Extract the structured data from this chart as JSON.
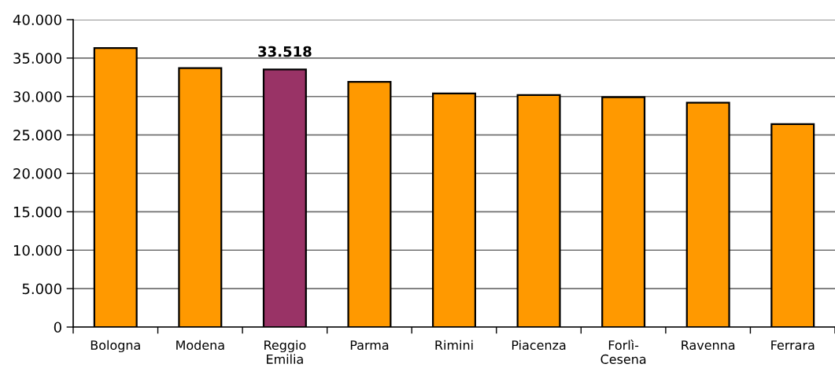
{
  "chart_data": {
    "type": "bar",
    "categories": [
      "Bologna",
      "Modena",
      "Reggio\nEmilia",
      "Parma",
      "Rimini",
      "Piacenza",
      "Forlì-\nCesena",
      "Ravenna",
      "Ferrara"
    ],
    "values": [
      36300,
      33700,
      33518,
      31900,
      30400,
      30200,
      29900,
      29200,
      26400
    ],
    "colors": [
      "#ff9900",
      "#ff9900",
      "#993366",
      "#ff9900",
      "#ff9900",
      "#ff9900",
      "#ff9900",
      "#ff9900",
      "#ff9900"
    ],
    "value_labels": [
      null,
      null,
      "33.518",
      null,
      null,
      null,
      null,
      null,
      null
    ],
    "ylim": [
      0,
      40000
    ],
    "yticks": [
      0,
      {
        "value": 5000,
        "label": "5.000"
      },
      {
        "value": 10000,
        "label": "10.000"
      },
      {
        "value": 15000,
        "label": "15.000"
      },
      {
        "value": 20000,
        "label": "20.000"
      },
      {
        "value": 25000,
        "label": "25.000"
      },
      {
        "value": 30000,
        "label": "30.000"
      },
      {
        "value": 35000,
        "label": "35.000"
      },
      {
        "value": 40000,
        "label": "40.000"
      }
    ],
    "grid": "y"
  }
}
